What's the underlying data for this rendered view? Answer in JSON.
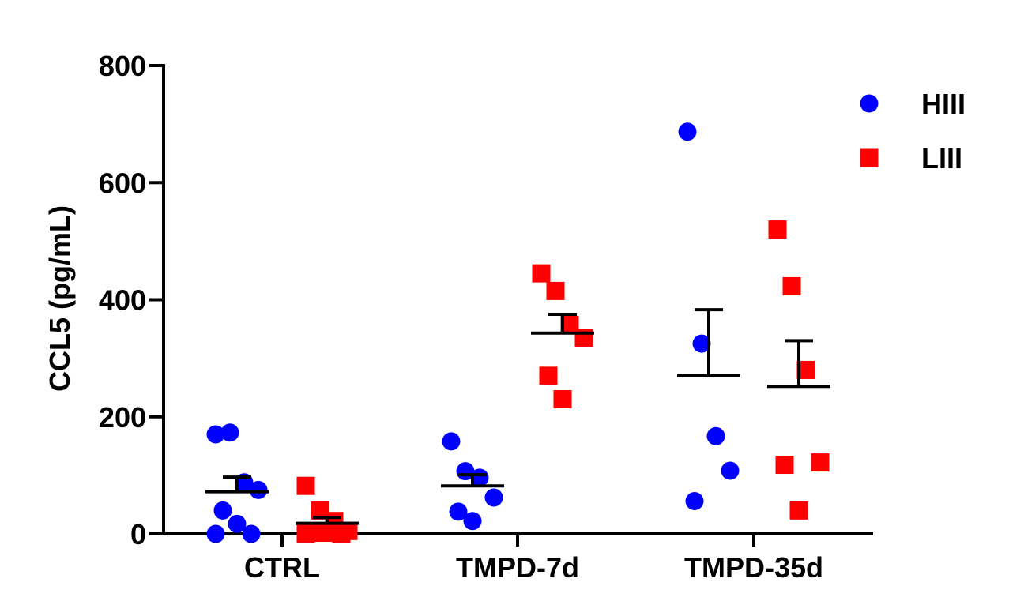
{
  "chart_data": {
    "type": "scatter",
    "title": "",
    "xlabel": "",
    "ylabel": "CCL5 (pg/mL)",
    "ylim": [
      0,
      800
    ],
    "yticks": [
      0,
      200,
      400,
      600,
      800
    ],
    "categories": [
      "CTRL",
      "TMPD-7d",
      "TMPD-35d"
    ],
    "grid": false,
    "legend_position": "top-right",
    "series": [
      {
        "name": "HIII",
        "marker": "circle",
        "color": "#0000ff",
        "points": [
          [
            0,
            170
          ],
          [
            0,
            173
          ],
          [
            0,
            88
          ],
          [
            0,
            75
          ],
          [
            0,
            40
          ],
          [
            0,
            17
          ],
          [
            0,
            0
          ],
          [
            0,
            0
          ],
          [
            1,
            158
          ],
          [
            1,
            107
          ],
          [
            1,
            96
          ],
          [
            1,
            62
          ],
          [
            1,
            38
          ],
          [
            1,
            22
          ],
          [
            2,
            687
          ],
          [
            2,
            325
          ],
          [
            2,
            167
          ],
          [
            2,
            108
          ],
          [
            2,
            56
          ]
        ],
        "mean": [
          72,
          82,
          270
        ],
        "sem_upper": [
          97,
          101,
          383
        ]
      },
      {
        "name": "LIII",
        "marker": "square",
        "color": "#ff0000",
        "points": [
          [
            0,
            82
          ],
          [
            0,
            40
          ],
          [
            0,
            22
          ],
          [
            0,
            5
          ],
          [
            0,
            2
          ],
          [
            0,
            2
          ],
          [
            0,
            0
          ],
          [
            0,
            0
          ],
          [
            1,
            445
          ],
          [
            1,
            415
          ],
          [
            1,
            357
          ],
          [
            1,
            335
          ],
          [
            1,
            270
          ],
          [
            1,
            230
          ],
          [
            2,
            520
          ],
          [
            2,
            423
          ],
          [
            2,
            280
          ],
          [
            2,
            122
          ],
          [
            2,
            118
          ],
          [
            2,
            40
          ]
        ],
        "mean": [
          18,
          343,
          252
        ],
        "sem_upper": [
          28,
          375,
          330
        ]
      }
    ]
  }
}
